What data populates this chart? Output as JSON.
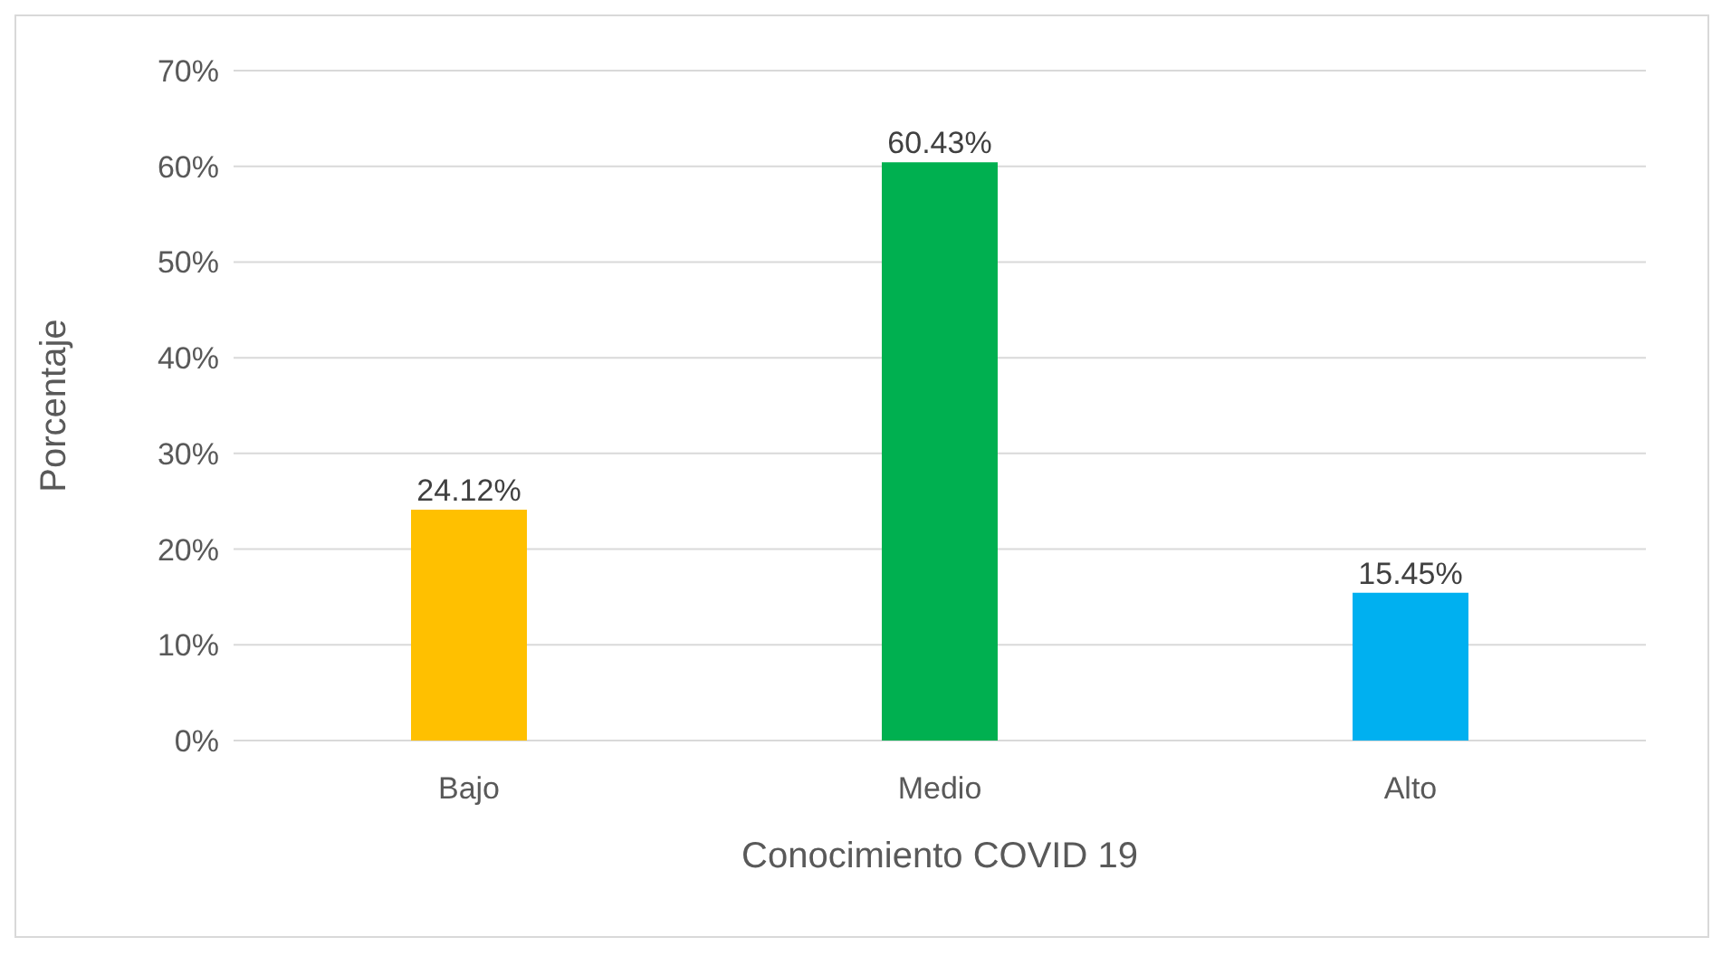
{
  "chart_data": {
    "type": "bar",
    "xlabel": "Conocimiento COVID 19",
    "ylabel": "Porcentaje",
    "categories": [
      "Bajo",
      "Medio",
      "Alto"
    ],
    "values": [
      24.12,
      60.43,
      15.45
    ],
    "colors": [
      "#ffc000",
      "#00b050",
      "#00b0f0"
    ],
    "value_labels": [
      "24.12%",
      "60.43%",
      "15.45%"
    ],
    "ylim": [
      0,
      70
    ],
    "yticks": [
      {
        "value": 0,
        "label": "0%"
      },
      {
        "value": 10,
        "label": "10%"
      },
      {
        "value": 20,
        "label": "20%"
      },
      {
        "value": 30,
        "label": "30%"
      },
      {
        "value": 40,
        "label": "40%"
      },
      {
        "value": 50,
        "label": "50%"
      },
      {
        "value": 60,
        "label": "60%"
      },
      {
        "value": 70,
        "label": "70%"
      }
    ],
    "grid": "y",
    "legend": false
  }
}
